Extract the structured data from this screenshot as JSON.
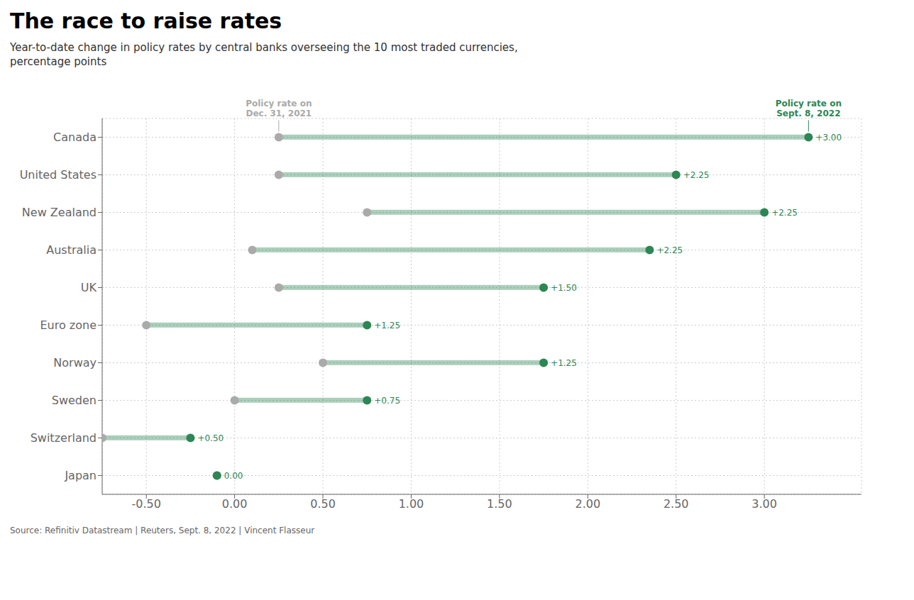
{
  "chart_data": {
    "type": "dumbbell",
    "title": "The race to raise rates",
    "subtitle": "Year-to-date change in policy rates by central banks overseeing the 10 most traded currencies,\npercentage points",
    "source": "Source: Refinitiv Datastream | Reuters, Sept. 8, 2022 | Vincent Flasseur",
    "categories": [
      "Canada",
      "United States",
      "New Zealand",
      "Australia",
      "UK",
      "Euro zone",
      "Norway",
      "Sweden",
      "Switzerland",
      "Japan"
    ],
    "series": [
      {
        "name": "Policy rate on\nDec. 31, 2021",
        "color": "#aaaaaa",
        "values": [
          0.25,
          0.25,
          0.75,
          0.1,
          0.25,
          -0.5,
          0.5,
          0.0,
          -0.75,
          -0.1
        ]
      },
      {
        "name": "Policy rate on\nSept. 8, 2022",
        "color": "#2d8653",
        "values": [
          3.25,
          2.5,
          3.0,
          2.35,
          1.75,
          0.75,
          1.75,
          0.75,
          -0.25,
          -0.1
        ]
      }
    ],
    "change_labels": [
      "+3.00",
      "+2.25",
      "+2.25",
      "+2.25",
      "+1.50",
      "+1.25",
      "+1.25",
      "+0.75",
      "+0.50",
      "0.00"
    ],
    "xlim": [
      -0.75,
      3.55
    ],
    "xticks": [
      {
        "value": -0.5,
        "label": "-0.50"
      },
      {
        "value": 0,
        "label": "0.00"
      },
      {
        "value": 0.5,
        "label": "0.50"
      },
      {
        "value": 1,
        "label": "1.00"
      },
      {
        "value": 1.5,
        "label": "1.50"
      },
      {
        "value": 2,
        "label": "2.00"
      },
      {
        "value": 2.5,
        "label": "2.50"
      },
      {
        "value": 3,
        "label": "3.00"
      }
    ],
    "grid": true
  }
}
